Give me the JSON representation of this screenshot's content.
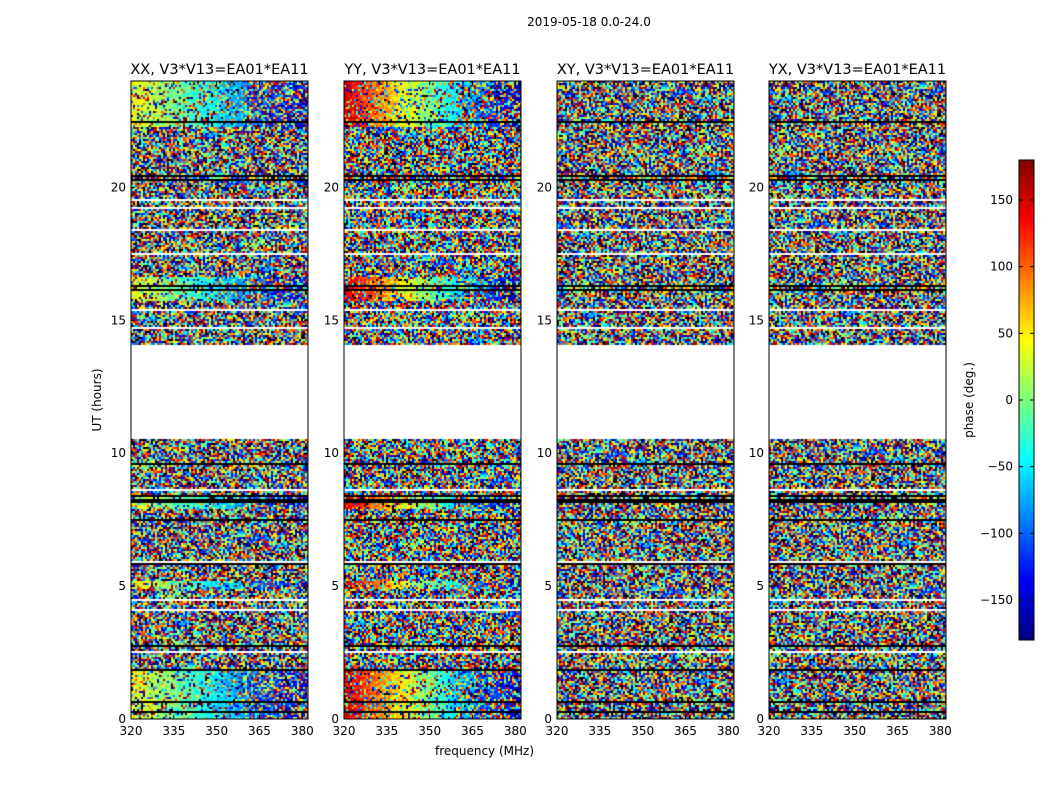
{
  "figure": {
    "suptitle": "2019-05-18 0.0-24.0"
  },
  "chart_data": [
    {
      "type": "heatmap",
      "title": "XX, V3*V13=EA01*EA11",
      "xlim": [
        320,
        382
      ],
      "ylim": [
        0,
        24
      ],
      "xticks": [
        320,
        335,
        350,
        365,
        380
      ],
      "yticks": [
        0,
        5,
        10,
        15,
        20
      ],
      "ylabel": "UT (hours)",
      "coherent_phase_gradient": true
    },
    {
      "type": "heatmap",
      "title": "YY, V3*V13=EA01*EA11",
      "xlim": [
        320,
        382
      ],
      "ylim": [
        0,
        24
      ],
      "xticks": [
        320,
        335,
        350,
        365,
        380
      ],
      "yticks": [
        0,
        5,
        10,
        15,
        20
      ],
      "xlabel": "frequency (MHz)",
      "coherent_phase_gradient": true
    },
    {
      "type": "heatmap",
      "title": "XY, V3*V13=EA01*EA11",
      "xlim": [
        320,
        382
      ],
      "ylim": [
        0,
        24
      ],
      "xticks": [
        320,
        335,
        350,
        365,
        380
      ],
      "yticks": [
        0,
        5,
        10,
        15,
        20
      ],
      "coherent_phase_gradient": false
    },
    {
      "type": "heatmap",
      "title": "YX, V3*V13=EA01*EA11",
      "xlim": [
        320,
        382
      ],
      "ylim": [
        0,
        24
      ],
      "xticks": [
        320,
        335,
        350,
        365,
        380
      ],
      "yticks": [
        0,
        5,
        10,
        15,
        20
      ],
      "coherent_phase_gradient": false
    }
  ],
  "shared": {
    "data_gaps_hours": [
      [
        10.5,
        14.1
      ]
    ],
    "colorbar": {
      "label": "phase (deg.)",
      "range": [
        -180,
        180
      ],
      "ticks": [
        150,
        100,
        50,
        0,
        -50,
        -100,
        -150
      ],
      "tick_labels": [
        "150",
        "100",
        "50",
        "0",
        "−50",
        "−100",
        "−150"
      ],
      "colormap": "jet"
    }
  }
}
